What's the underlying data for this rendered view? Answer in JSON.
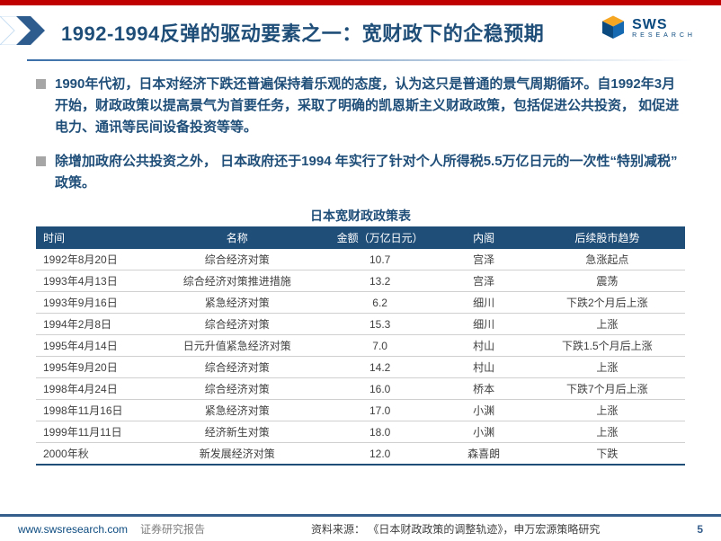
{
  "colors": {
    "top_bar": "#c00000",
    "title": "#1f4e79",
    "bullet_square": "#a6a6a6",
    "bullet_text": "#1f4e79",
    "table_header_bg": "#1f4e79",
    "table_header_fg": "#ffffff",
    "table_row_border": "#d0d0d0",
    "footer_border": "#355e8c",
    "logo_text": "#0b4a7f"
  },
  "header": {
    "title": "1992-1994反弹的驱动要素之一：宽财政下的企稳预期",
    "logo_main": "SWS",
    "logo_sub": "RESEARCH"
  },
  "bullets": [
    "1990年代初，日本对经济下跌还普遍保持着乐观的态度，认为这只是普通的景气周期循环。自1992年3月开始，财政政策以提高景气为首要任务，采取了明确的凯恩斯主义财政政策，包括促进公共投资， 如促进电力、通讯等民间设备投资等等。",
    "除增加政府公共投资之外， 日本政府还于1994 年实行了针对个人所得税5.5万亿日元的一次性“特别减税” 政策。"
  ],
  "table": {
    "title": "日本宽财政政策表",
    "columns": [
      "时间",
      "名称",
      "金额（万亿日元）",
      "内阁",
      "后续股市趋势"
    ],
    "col_widths": [
      "18%",
      "26%",
      "18%",
      "14%",
      "24%"
    ],
    "rows": [
      [
        "1992年8月20日",
        "综合经济对策",
        "10.7",
        "宫泽",
        "急涨起点"
      ],
      [
        "1993年4月13日",
        "综合经济对策推进措施",
        "13.2",
        "宫泽",
        "震荡"
      ],
      [
        "1993年9月16日",
        "紧急经济对策",
        "6.2",
        "细川",
        "下跌2个月后上涨"
      ],
      [
        "1994年2月8日",
        "综合经济对策",
        "15.3",
        "细川",
        "上涨"
      ],
      [
        "1995年4月14日",
        "日元升值紧急经济对策",
        "7.0",
        "村山",
        "下跌1.5个月后上涨"
      ],
      [
        "1995年9月20日",
        "综合经济对策",
        "14.2",
        "村山",
        "上涨"
      ],
      [
        "1998年4月24日",
        "综合经济对策",
        "16.0",
        "桥本",
        "下跌7个月后上涨"
      ],
      [
        "1998年11月16日",
        "紧急经济对策",
        "17.0",
        "小渊",
        "上涨"
      ],
      [
        "1999年11月11日",
        "经济新生对策",
        "18.0",
        "小渊",
        "上涨"
      ],
      [
        "2000年秋",
        "新发展经济对策",
        "12.0",
        "森喜朗",
        "下跌"
      ]
    ]
  },
  "footer": {
    "url": "www.swsresearch.com",
    "label": "证券研究报告",
    "source": "资料来源： 《日本财政政策的调整轨迹》，申万宏源策略研究",
    "page": "5"
  }
}
